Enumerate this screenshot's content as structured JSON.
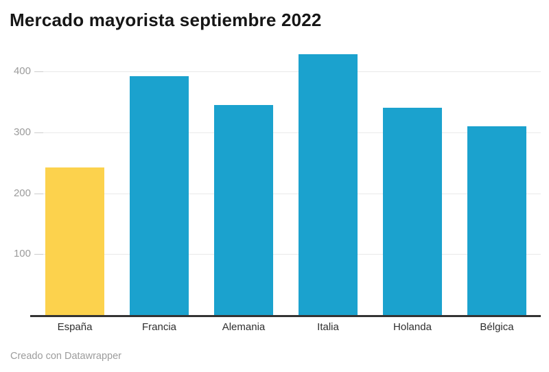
{
  "title": "Mercado mayorista septiembre 2022",
  "footer": "Creado con Datawrapper",
  "colors": {
    "highlight_bar": "#FCD24D",
    "default_bar": "#1BA2CE",
    "axis_line": "#333333",
    "grid_line": "#E9E9E9",
    "y_tick_label": "#9B9B9B",
    "x_label": "#2E2E2E",
    "title": "#161616",
    "footer": "#9C9C9C",
    "background": "#FFFFFF"
  },
  "chart_data": {
    "type": "bar",
    "title": "Mercado mayorista septiembre 2022",
    "categories": [
      "España",
      "Francia",
      "Alemania",
      "Italia",
      "Holanda",
      "Bélgica"
    ],
    "values": [
      244,
      394,
      346,
      430,
      342,
      311
    ],
    "bar_colors": [
      "#FCD24D",
      "#1BA2CE",
      "#1BA2CE",
      "#1BA2CE",
      "#1BA2CE",
      "#1BA2CE"
    ],
    "highlighted_category": "España",
    "yticks": [
      100,
      200,
      300,
      400
    ],
    "ylim": [
      0,
      451
    ],
    "xlabel": "",
    "ylabel": "",
    "grid": "horizontal",
    "legend": "none"
  }
}
